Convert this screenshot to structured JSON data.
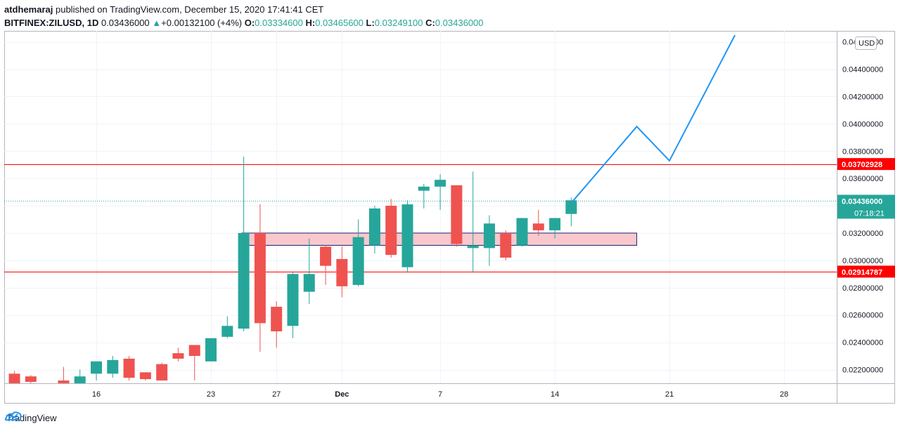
{
  "header": {
    "user": "atdhemaraj",
    "published_text": " published on TradingView.com, December 15, 2020 17:41:41 CET",
    "symbol": "BITFINEX:ZILUSD, 1D",
    "last": "0.03436000",
    "arrow": "▲",
    "change": "+0.00132100 (+4%)",
    "o_label": "O:",
    "o_value": "0.03334600",
    "h_label": "H:",
    "h_value": "0.03465600",
    "l_label": "L:",
    "l_value": "0.03249100",
    "c_label": "C:",
    "c_value": "0.03436000"
  },
  "footer": {
    "brand": "TradingView"
  },
  "colors": {
    "up": "#26a69a",
    "down": "#ef5350",
    "line": "#2196f3",
    "level": "#ff0000",
    "zone_fill": "#f8c8cc",
    "zone_border": "#1a237e"
  },
  "chart_data": {
    "type": "candlestick",
    "currency": "USD",
    "ylim": [
      0.0214,
      0.0465
    ],
    "y_ticks": [
      "0.02200000",
      "0.02400000",
      "0.02600000",
      "0.02800000",
      "0.03000000",
      "0.03200000",
      "0.03400000",
      "0.03600000",
      "0.03800000",
      "0.04000000",
      "0.04200000",
      "0.04400000",
      "0.04600000"
    ],
    "x_ticks": [
      {
        "day": 16,
        "label": "16"
      },
      {
        "day": 23,
        "label": "23"
      },
      {
        "day": 27,
        "label": "27"
      },
      {
        "day": 31,
        "label": "Dec"
      },
      {
        "day": 37,
        "label": "7"
      },
      {
        "day": 44,
        "label": "14"
      },
      {
        "day": 51,
        "label": "21"
      },
      {
        "day": 58,
        "label": "28"
      }
    ],
    "candles": [
      {
        "day": 10,
        "o": 0.021,
        "h": 0.0228,
        "l": 0.0205,
        "c": 0.0212
      },
      {
        "day": 11,
        "o": 0.0217,
        "h": 0.0219,
        "l": 0.0208,
        "c": 0.021
      },
      {
        "day": 12,
        "o": 0.0215,
        "h": 0.0216,
        "l": 0.0209,
        "c": 0.0211
      },
      {
        "day": 14,
        "o": 0.0212,
        "h": 0.0222,
        "l": 0.0205,
        "c": 0.021
      },
      {
        "day": 15,
        "o": 0.021,
        "h": 0.022,
        "l": 0.0207,
        "c": 0.0215
      },
      {
        "day": 16,
        "o": 0.0217,
        "h": 0.0225,
        "l": 0.0212,
        "c": 0.0226
      },
      {
        "day": 17,
        "o": 0.0217,
        "h": 0.023,
        "l": 0.0214,
        "c": 0.0227
      },
      {
        "day": 18,
        "o": 0.0228,
        "h": 0.023,
        "l": 0.0212,
        "c": 0.0214
      },
      {
        "day": 19,
        "o": 0.0218,
        "h": 0.0218,
        "l": 0.0212,
        "c": 0.0213
      },
      {
        "day": 20,
        "o": 0.0224,
        "h": 0.0225,
        "l": 0.0212,
        "c": 0.0212
      },
      {
        "day": 21,
        "o": 0.0232,
        "h": 0.0236,
        "l": 0.0226,
        "c": 0.0228
      },
      {
        "day": 22,
        "o": 0.0238,
        "h": 0.0238,
        "l": 0.0212,
        "c": 0.023
      },
      {
        "day": 23,
        "o": 0.0226,
        "h": 0.0243,
        "l": 0.0226,
        "c": 0.0243
      },
      {
        "day": 24,
        "o": 0.0244,
        "h": 0.0259,
        "l": 0.0243,
        "c": 0.0252
      },
      {
        "day": 25,
        "o": 0.025,
        "h": 0.0376,
        "l": 0.0248,
        "c": 0.032
      },
      {
        "day": 26,
        "o": 0.032,
        "h": 0.0341,
        "l": 0.0233,
        "c": 0.0254
      },
      {
        "day": 27,
        "o": 0.0266,
        "h": 0.027,
        "l": 0.0236,
        "c": 0.0248
      },
      {
        "day": 28,
        "o": 0.0252,
        "h": 0.0291,
        "l": 0.0243,
        "c": 0.029
      },
      {
        "day": 29,
        "o": 0.0277,
        "h": 0.0316,
        "l": 0.0268,
        "c": 0.029
      },
      {
        "day": 30,
        "o": 0.031,
        "h": 0.0311,
        "l": 0.0282,
        "c": 0.0296
      },
      {
        "day": 31,
        "o": 0.0301,
        "h": 0.031,
        "l": 0.0273,
        "c": 0.0281
      },
      {
        "day": 32,
        "o": 0.0282,
        "h": 0.033,
        "l": 0.0281,
        "c": 0.0317
      },
      {
        "day": 33,
        "o": 0.0311,
        "h": 0.034,
        "l": 0.0305,
        "c": 0.0338
      },
      {
        "day": 34,
        "o": 0.034,
        "h": 0.0345,
        "l": 0.0302,
        "c": 0.0304
      },
      {
        "day": 35,
        "o": 0.0295,
        "h": 0.0344,
        "l": 0.0291,
        "c": 0.0341
      },
      {
        "day": 36,
        "o": 0.0351,
        "h": 0.0356,
        "l": 0.0338,
        "c": 0.0354
      },
      {
        "day": 37,
        "o": 0.0354,
        "h": 0.0363,
        "l": 0.0337,
        "c": 0.0359
      },
      {
        "day": 38,
        "o": 0.0355,
        "h": 0.0355,
        "l": 0.031,
        "c": 0.0312
      },
      {
        "day": 39,
        "o": 0.0309,
        "h": 0.0365,
        "l": 0.0291,
        "c": 0.0311
      },
      {
        "day": 40,
        "o": 0.0309,
        "h": 0.0333,
        "l": 0.0296,
        "c": 0.0327
      },
      {
        "day": 41,
        "o": 0.032,
        "h": 0.0322,
        "l": 0.03,
        "c": 0.0302
      },
      {
        "day": 42,
        "o": 0.0311,
        "h": 0.0331,
        "l": 0.031,
        "c": 0.0331
      },
      {
        "day": 43,
        "o": 0.0327,
        "h": 0.0337,
        "l": 0.0318,
        "c": 0.0322
      },
      {
        "day": 44,
        "o": 0.0322,
        "h": 0.0331,
        "l": 0.0316,
        "c": 0.0331
      },
      {
        "day": 45,
        "o": 0.0334,
        "h": 0.0346,
        "l": 0.0325,
        "c": 0.0344
      }
    ],
    "projection": [
      {
        "day": 45,
        "y": 0.0342
      },
      {
        "day": 49,
        "y": 0.0398
      },
      {
        "day": 51,
        "y": 0.0373
      },
      {
        "day": 55,
        "y": 0.0465
      }
    ],
    "levels": [
      {
        "value": 0.03702928,
        "label": "0.03702928"
      },
      {
        "value": 0.02914787,
        "label": "0.02914787"
      }
    ],
    "zone": {
      "day_start": 25,
      "day_end": 49,
      "y_low": 0.0311,
      "y_high": 0.032
    },
    "last_price": {
      "value": 0.03436,
      "label": "0.03436000",
      "countdown": "07:18:21"
    }
  }
}
